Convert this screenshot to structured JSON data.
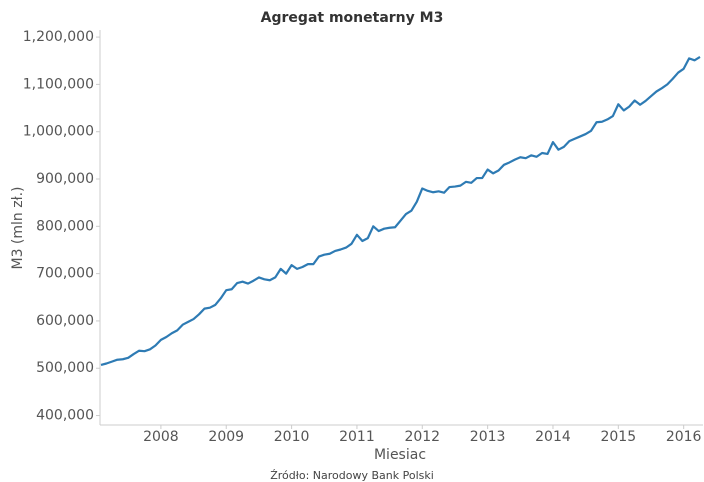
{
  "chart_data": {
    "type": "line",
    "title": "Agregat monetarny M3",
    "y_label": "M3 (mln zł.)",
    "x_label": "Miesiac",
    "source": "Źródło: Narodowy Bank Polski",
    "color": "#2e7bb4",
    "xlim": [
      "2007-02",
      "2016-04"
    ],
    "xticks": [
      {
        "value": "2008-01",
        "label": "2008"
      },
      {
        "value": "2009-01",
        "label": "2009"
      },
      {
        "value": "2010-01",
        "label": "2010"
      },
      {
        "value": "2011-01",
        "label": "2011"
      },
      {
        "value": "2012-01",
        "label": "2012"
      },
      {
        "value": "2013-01",
        "label": "2013"
      },
      {
        "value": "2014-01",
        "label": "2014"
      },
      {
        "value": "2015-01",
        "label": "2015"
      },
      {
        "value": "2016-01",
        "label": "2016"
      }
    ],
    "ylim": [
      380000,
      1215000
    ],
    "yticks": [
      {
        "value": 400000,
        "label": "400,000"
      },
      {
        "value": 500000,
        "label": "500,000"
      },
      {
        "value": 600000,
        "label": "600,000"
      },
      {
        "value": 700000,
        "label": "700,000"
      },
      {
        "value": 800000,
        "label": "800,000"
      },
      {
        "value": 900000,
        "label": "900,000"
      },
      {
        "value": 1000000,
        "label": "1,000,000"
      },
      {
        "value": 1100000,
        "label": "1,100,000"
      },
      {
        "value": 1200000,
        "label": "1,200,000"
      }
    ],
    "x": [
      "2007-02",
      "2007-03",
      "2007-04",
      "2007-05",
      "2007-06",
      "2007-07",
      "2007-08",
      "2007-09",
      "2007-10",
      "2007-11",
      "2007-12",
      "2008-01",
      "2008-02",
      "2008-03",
      "2008-04",
      "2008-05",
      "2008-06",
      "2008-07",
      "2008-08",
      "2008-09",
      "2008-10",
      "2008-11",
      "2008-12",
      "2009-01",
      "2009-02",
      "2009-03",
      "2009-04",
      "2009-05",
      "2009-06",
      "2009-07",
      "2009-08",
      "2009-09",
      "2009-10",
      "2009-11",
      "2009-12",
      "2010-01",
      "2010-02",
      "2010-03",
      "2010-04",
      "2010-05",
      "2010-06",
      "2010-07",
      "2010-08",
      "2010-09",
      "2010-10",
      "2010-11",
      "2010-12",
      "2011-01",
      "2011-02",
      "2011-03",
      "2011-04",
      "2011-05",
      "2011-06",
      "2011-07",
      "2011-08",
      "2011-09",
      "2011-10",
      "2011-11",
      "2011-12",
      "2012-01",
      "2012-02",
      "2012-03",
      "2012-04",
      "2012-05",
      "2012-06",
      "2012-07",
      "2012-08",
      "2012-09",
      "2012-10",
      "2012-11",
      "2012-12",
      "2013-01",
      "2013-02",
      "2013-03",
      "2013-04",
      "2013-05",
      "2013-06",
      "2013-07",
      "2013-08",
      "2013-09",
      "2013-10",
      "2013-11",
      "2013-12",
      "2014-01",
      "2014-02",
      "2014-03",
      "2014-04",
      "2014-05",
      "2014-06",
      "2014-07",
      "2014-08",
      "2014-09",
      "2014-10",
      "2014-11",
      "2014-12",
      "2015-01",
      "2015-02",
      "2015-03",
      "2015-04",
      "2015-05",
      "2015-06",
      "2015-07",
      "2015-08",
      "2015-09",
      "2015-10",
      "2015-11",
      "2015-12",
      "2016-01",
      "2016-02",
      "2016-03",
      "2016-04"
    ],
    "values": [
      507000,
      510000,
      514000,
      518000,
      519000,
      522000,
      530000,
      537000,
      536000,
      540000,
      548000,
      560000,
      566000,
      574000,
      580000,
      592000,
      598000,
      604000,
      614000,
      626000,
      628000,
      634000,
      648000,
      665000,
      667000,
      680000,
      683000,
      679000,
      685000,
      692000,
      688000,
      686000,
      692000,
      710000,
      700000,
      718000,
      710000,
      714000,
      720000,
      720000,
      736000,
      740000,
      742000,
      748000,
      751000,
      755000,
      763000,
      782000,
      769000,
      775000,
      800000,
      790000,
      795000,
      797000,
      798000,
      812000,
      826000,
      833000,
      852000,
      880000,
      875000,
      872000,
      874000,
      871000,
      883000,
      884000,
      886000,
      894000,
      892000,
      902000,
      902000,
      920000,
      912000,
      918000,
      930000,
      935000,
      941000,
      946000,
      944000,
      950000,
      947000,
      955000,
      953000,
      978000,
      962000,
      968000,
      980000,
      985000,
      990000,
      995000,
      1002000,
      1020000,
      1021000,
      1026000,
      1033000,
      1058000,
      1045000,
      1053000,
      1066000,
      1057000,
      1065000,
      1075000,
      1085000,
      1092000,
      1100000,
      1112000,
      1125000,
      1133000,
      1155000,
      1151000,
      1158000
    ]
  }
}
